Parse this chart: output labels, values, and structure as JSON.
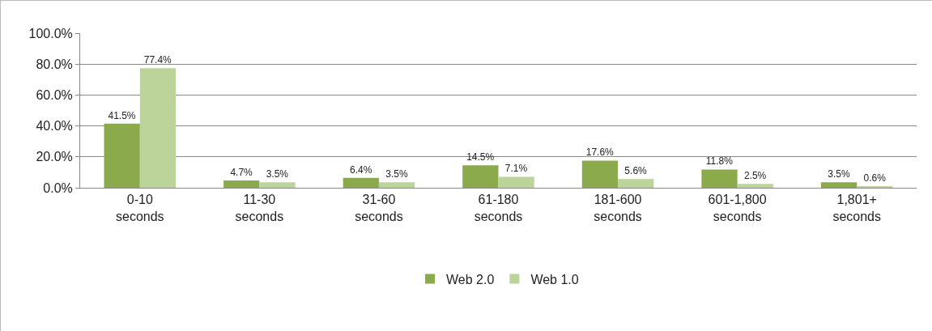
{
  "chart_data": {
    "type": "bar",
    "categories": [
      "0-10 seconds",
      "11-30 seconds",
      "31-60 seconds",
      "61-180 seconds",
      "181-600 seconds",
      "601-1,800 seconds",
      "1,801+ seconds"
    ],
    "series": [
      {
        "name": "Web 2.0",
        "color": "#8aaa4b",
        "values": [
          41.5,
          4.7,
          6.4,
          14.5,
          17.6,
          11.8,
          3.5
        ],
        "value_labels": [
          "41.5%",
          "4.7%",
          "6.4%",
          "14.5%",
          "17.6%",
          "11.8%",
          "3.5%"
        ]
      },
      {
        "name": "Web 1.0",
        "color": "#bcd39a",
        "values": [
          77.4,
          3.5,
          3.5,
          7.1,
          5.6,
          2.5,
          0.6
        ],
        "value_labels": [
          "77.4%",
          "3.5%",
          "3.5%",
          "7.1%",
          "5.6%",
          "2.5%",
          "0.6%"
        ]
      }
    ],
    "ylim": [
      0,
      100
    ],
    "yticks": [
      {
        "value": 0,
        "label": "0.0%"
      },
      {
        "value": 20,
        "label": "20.0%"
      },
      {
        "value": 40,
        "label": "40.0%"
      },
      {
        "value": 60,
        "label": "60.0%"
      },
      {
        "value": 80,
        "label": "80.0%"
      },
      {
        "value": 100,
        "label": "100.0%"
      }
    ],
    "grid": "y",
    "legend": "bottom"
  }
}
